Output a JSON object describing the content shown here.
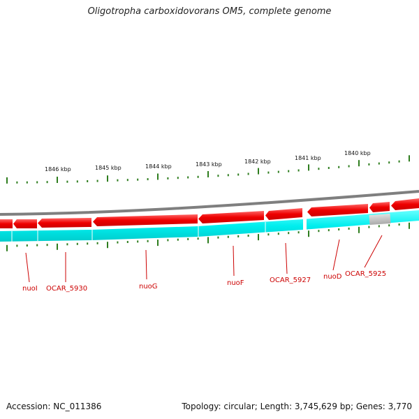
{
  "title": "Oligotropha carboxidovorans OM5, complete genome",
  "footer": {
    "accession": "Accession: NC_011386",
    "summary": "Topology: circular; Length: 3,745,629 bp; Genes: 3,770"
  },
  "colors": {
    "forward_strand": "#ee0000",
    "reverse_strand": "#00e5ee",
    "backbone": "#808080",
    "gene_label": "#cc0000",
    "tick": "#2e7d1e",
    "pseudogene": "#c0c0c0"
  },
  "scale_labels": [
    "1846 kbp",
    "1845 kbp",
    "1844 kbp",
    "1843 kbp",
    "1842 kbp",
    "1841 kbp",
    "1840 kbp"
  ],
  "gene_labels": [
    "nuoI",
    "OCAR_5930",
    "nuoG",
    "nuoF",
    "OCAR_5927",
    "nuoD",
    "OCAR_5925"
  ]
}
